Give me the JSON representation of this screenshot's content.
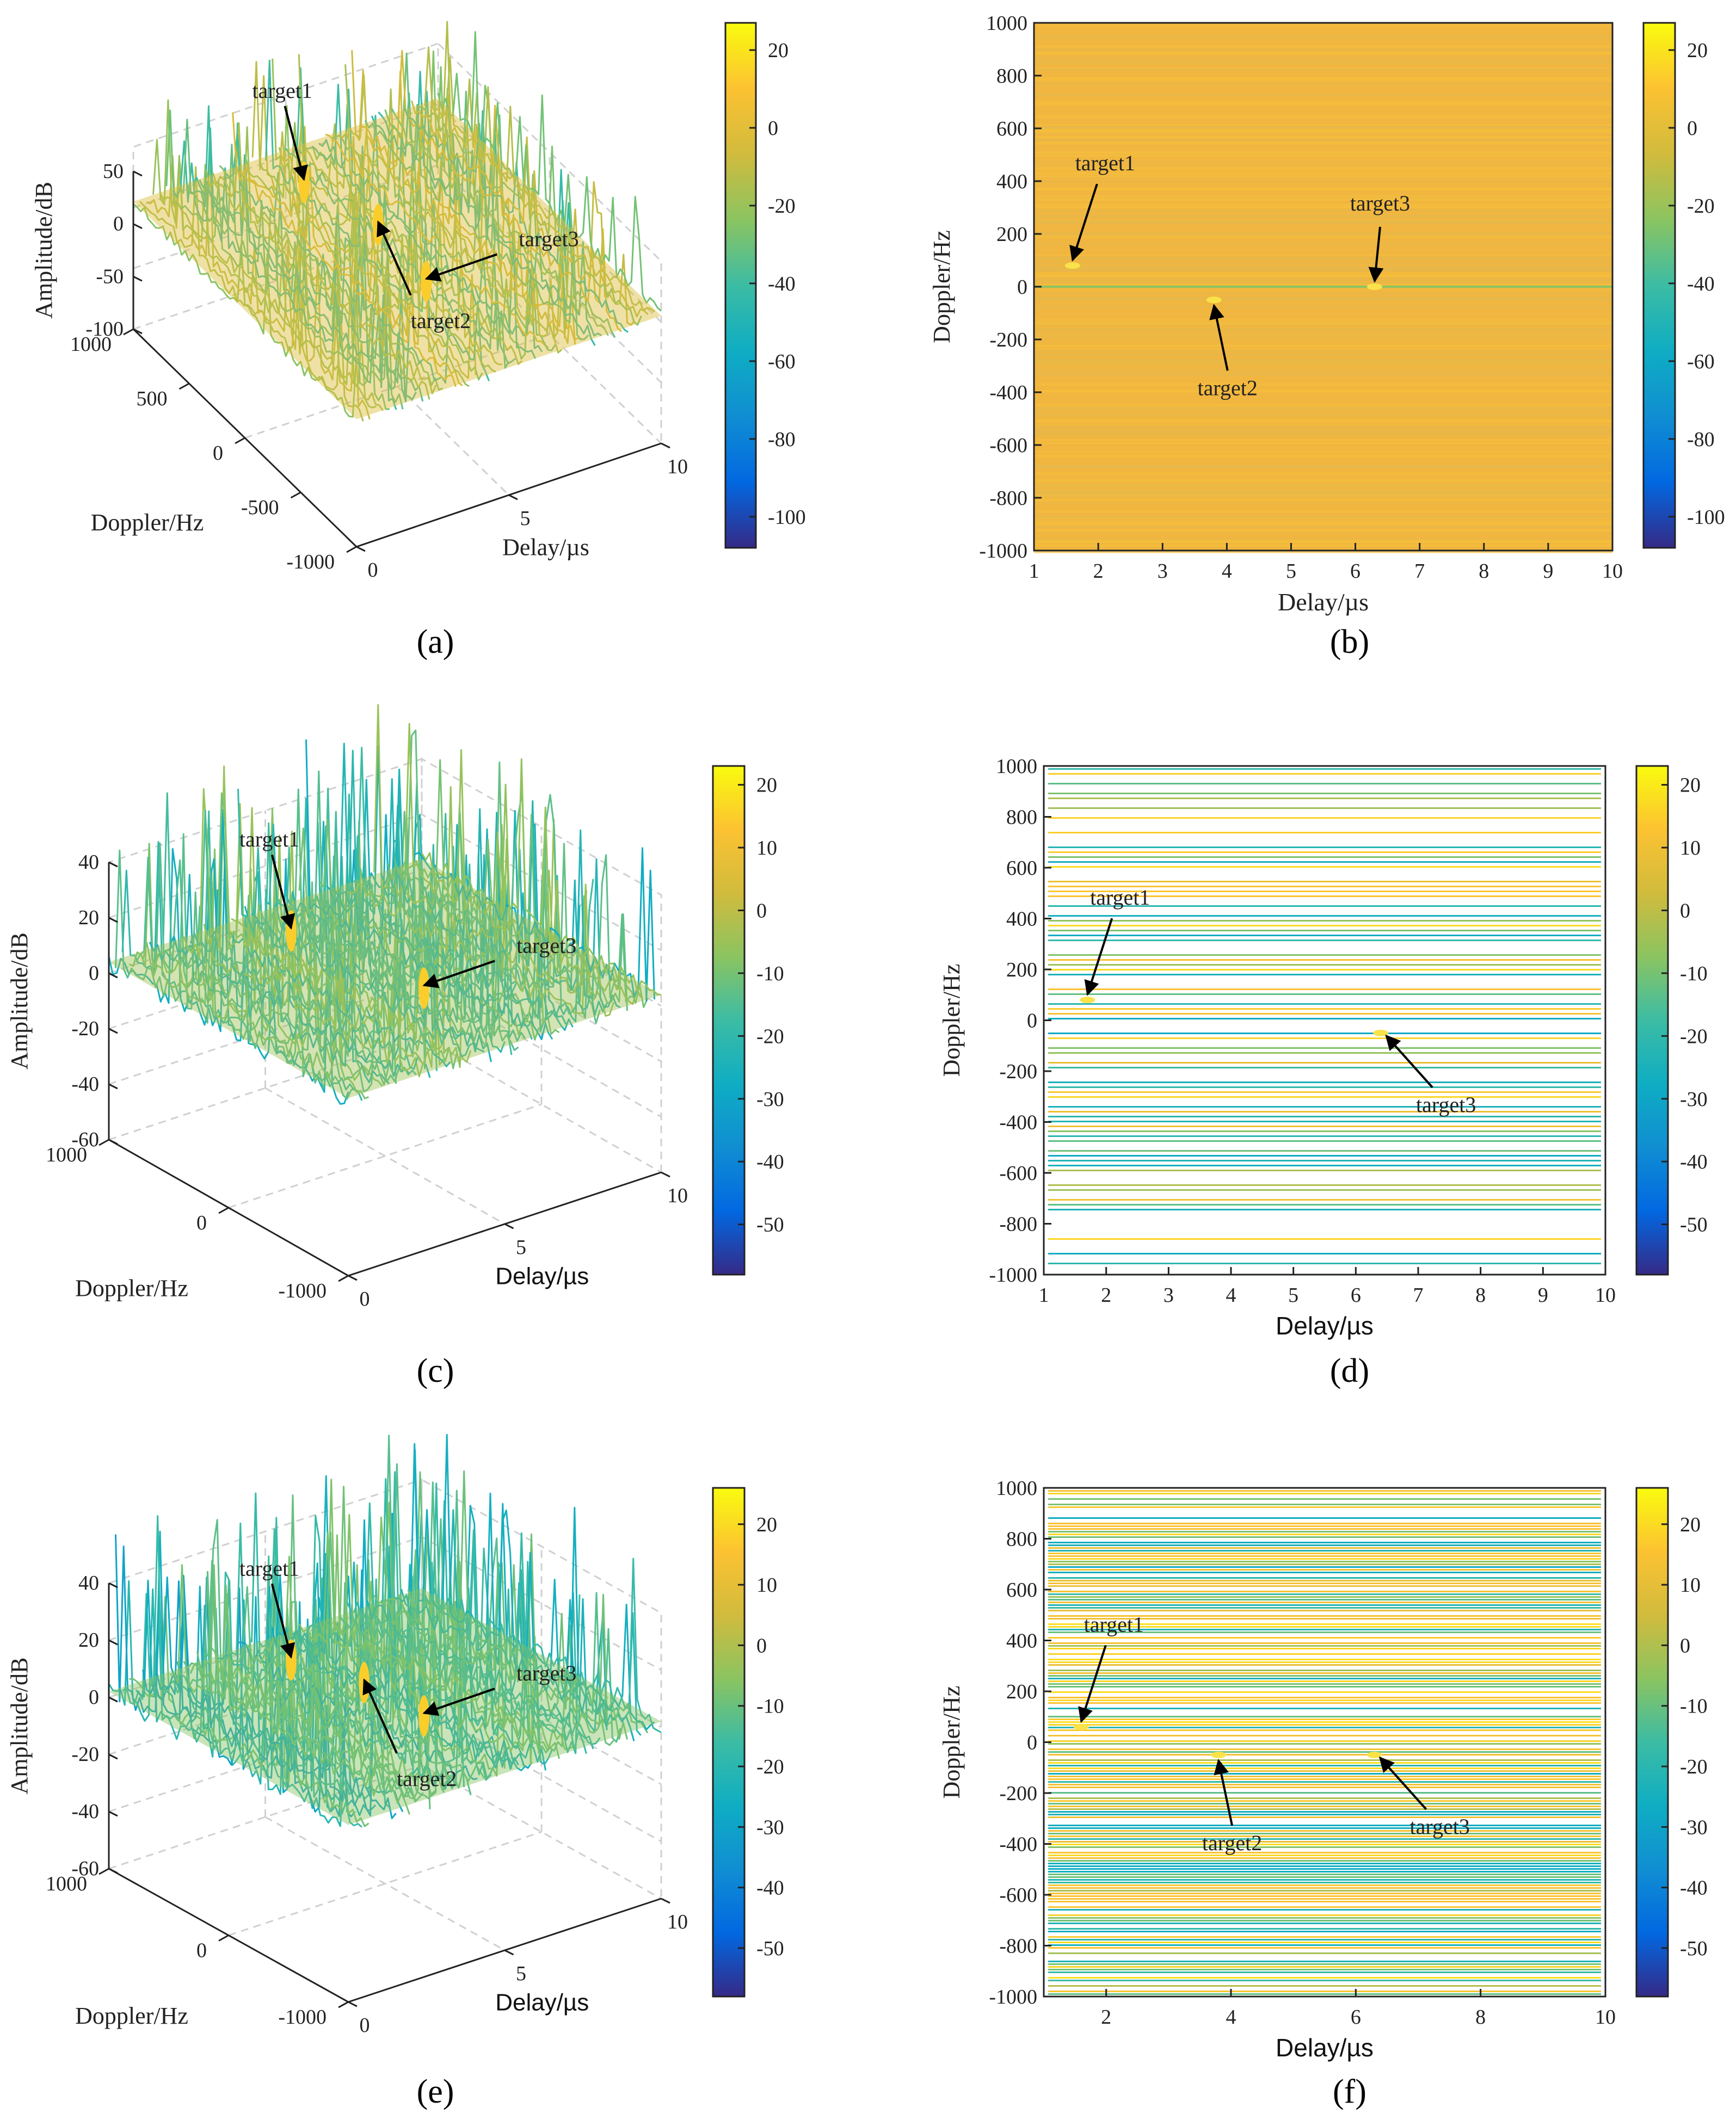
{
  "figure": {
    "panels": [
      "(a)",
      "(b)",
      "(c)",
      "(d)",
      "(e)",
      "(f)"
    ]
  },
  "colors": {
    "parula": [
      "#352a87",
      "#0268e1",
      "#108ed2",
      "#0fadc3",
      "#3cbca4",
      "#8bc461",
      "#d1bb3d",
      "#fcc232",
      "#f9fb0e"
    ],
    "axis": "#222222",
    "grid": "#cfcfcf",
    "arrow": "#000000"
  },
  "chart_data": [
    {
      "panel": "(a)",
      "type": "surface3d",
      "xlabel": "Delay/µs",
      "ylabel": "Doppler/Hz",
      "zlabel": "Amplitude/dB",
      "x_ticks": [
        "0",
        "5",
        "10"
      ],
      "y_ticks": [
        "1000",
        "500",
        "0",
        "-500",
        "-1000"
      ],
      "z_ticks": [
        "50",
        "0",
        "-50",
        "-100"
      ],
      "zlim": [
        -100,
        50
      ],
      "colorbar": {
        "ticks": [
          "20",
          "0",
          "-20",
          "-40",
          "-60",
          "-80",
          "-100"
        ],
        "range": [
          -108,
          27
        ]
      },
      "annotations": [
        {
          "label": "target1",
          "delay": 1.5,
          "doppler": 100,
          "amplitude": 25
        },
        {
          "label": "target2",
          "delay": 3.8,
          "doppler": -50,
          "amplitude": 27
        },
        {
          "label": "target3",
          "delay": 6.3,
          "doppler": 0,
          "amplitude": 22
        }
      ]
    },
    {
      "panel": "(b)",
      "type": "heatmap",
      "xlabel": "Delay/µs",
      "ylabel": "Doppler/Hz",
      "xlim": [
        1,
        10
      ],
      "ylim": [
        -1000,
        1000
      ],
      "x_ticks": [
        "1",
        "2",
        "3",
        "4",
        "5",
        "6",
        "7",
        "8",
        "9",
        "10"
      ],
      "y_ticks": [
        "1000",
        "800",
        "600",
        "400",
        "200",
        "0",
        "-200",
        "-400",
        "-600",
        "-800",
        "-1000"
      ],
      "colorbar": {
        "ticks": [
          "20",
          "0",
          "-20",
          "-40",
          "-60",
          "-80",
          "-100"
        ],
        "range": [
          -108,
          27
        ]
      },
      "annotations": [
        {
          "label": "target1",
          "delay": 1.6,
          "doppler": 80
        },
        {
          "label": "target2",
          "delay": 3.8,
          "doppler": -50
        },
        {
          "label": "target3",
          "delay": 6.3,
          "doppler": 0
        }
      ]
    },
    {
      "panel": "(c)",
      "type": "surface3d",
      "xlabel": "Delay/µs",
      "ylabel": "Doppler/Hz",
      "zlabel": "Amplitude/dB",
      "x_ticks": [
        "0",
        "5",
        "10"
      ],
      "y_ticks": [
        "1000",
        "0",
        "-1000"
      ],
      "z_ticks": [
        "40",
        "20",
        "0",
        "-20",
        "-40",
        "-60"
      ],
      "zlim": [
        -60,
        40
      ],
      "colorbar": {
        "ticks": [
          "20",
          "10",
          "0",
          "-10",
          "-20",
          "-30",
          "-40",
          "-50"
        ],
        "range": [
          -58,
          23
        ]
      },
      "annotations": [
        {
          "label": "target1",
          "delay": 1.6,
          "doppler": 80,
          "amplitude": 5
        },
        {
          "label": "target3",
          "delay": 6.3,
          "doppler": -50,
          "amplitude": 12
        }
      ]
    },
    {
      "panel": "(d)",
      "type": "heatmap",
      "xlabel": "Delay/µs",
      "ylabel": "Doppler/Hz",
      "xlim": [
        1,
        10
      ],
      "ylim": [
        -1000,
        1000
      ],
      "x_ticks": [
        "1",
        "2",
        "3",
        "4",
        "5",
        "6",
        "7",
        "8",
        "9",
        "10"
      ],
      "y_ticks": [
        "1000",
        "800",
        "600",
        "400",
        "200",
        "0",
        "-200",
        "-400",
        "-600",
        "-800",
        "-1000"
      ],
      "colorbar": {
        "ticks": [
          "20",
          "10",
          "0",
          "-10",
          "-20",
          "-30",
          "-40",
          "-50"
        ],
        "range": [
          -58,
          23
        ]
      },
      "annotations": [
        {
          "label": "target1",
          "delay": 1.7,
          "doppler": 80
        },
        {
          "label": "target3",
          "delay": 6.4,
          "doppler": -50
        }
      ]
    },
    {
      "panel": "(e)",
      "type": "surface3d",
      "xlabel": "Delay/µs",
      "ylabel": "Doppler/Hz",
      "zlabel": "Amplitude/dB",
      "x_ticks": [
        "0",
        "5",
        "10"
      ],
      "y_ticks": [
        "1000",
        "0",
        "-1000"
      ],
      "z_ticks": [
        "40",
        "20",
        "0",
        "-20",
        "-40",
        "-60"
      ],
      "zlim": [
        -60,
        40
      ],
      "colorbar": {
        "ticks": [
          "20",
          "10",
          "0",
          "-10",
          "-20",
          "-30",
          "-40",
          "-50"
        ],
        "range": [
          -58,
          26
        ]
      },
      "annotations": [
        {
          "label": "target1",
          "delay": 1.6,
          "doppler": 80,
          "amplitude": 8
        },
        {
          "label": "target2",
          "delay": 3.8,
          "doppler": -50,
          "amplitude": 24
        },
        {
          "label": "target3",
          "delay": 6.3,
          "doppler": -50,
          "amplitude": 14
        }
      ]
    },
    {
      "panel": "(f)",
      "type": "heatmap",
      "xlabel": "Delay/µs",
      "ylabel": "Doppler/Hz",
      "xlim": [
        1,
        10
      ],
      "ylim": [
        -1000,
        1000
      ],
      "x_ticks": [
        "2",
        "4",
        "6",
        "8",
        "10"
      ],
      "y_ticks": [
        "1000",
        "800",
        "600",
        "400",
        "200",
        "0",
        "-200",
        "-400",
        "-600",
        "-800",
        "-1000"
      ],
      "colorbar": {
        "ticks": [
          "20",
          "10",
          "0",
          "-10",
          "-20",
          "-30",
          "-40",
          "-50"
        ],
        "range": [
          -58,
          26
        ]
      },
      "annotations": [
        {
          "label": "target1",
          "delay": 1.6,
          "doppler": 60
        },
        {
          "label": "target2",
          "delay": 3.8,
          "doppler": -50
        },
        {
          "label": "target3",
          "delay": 6.3,
          "doppler": -50
        }
      ]
    }
  ]
}
